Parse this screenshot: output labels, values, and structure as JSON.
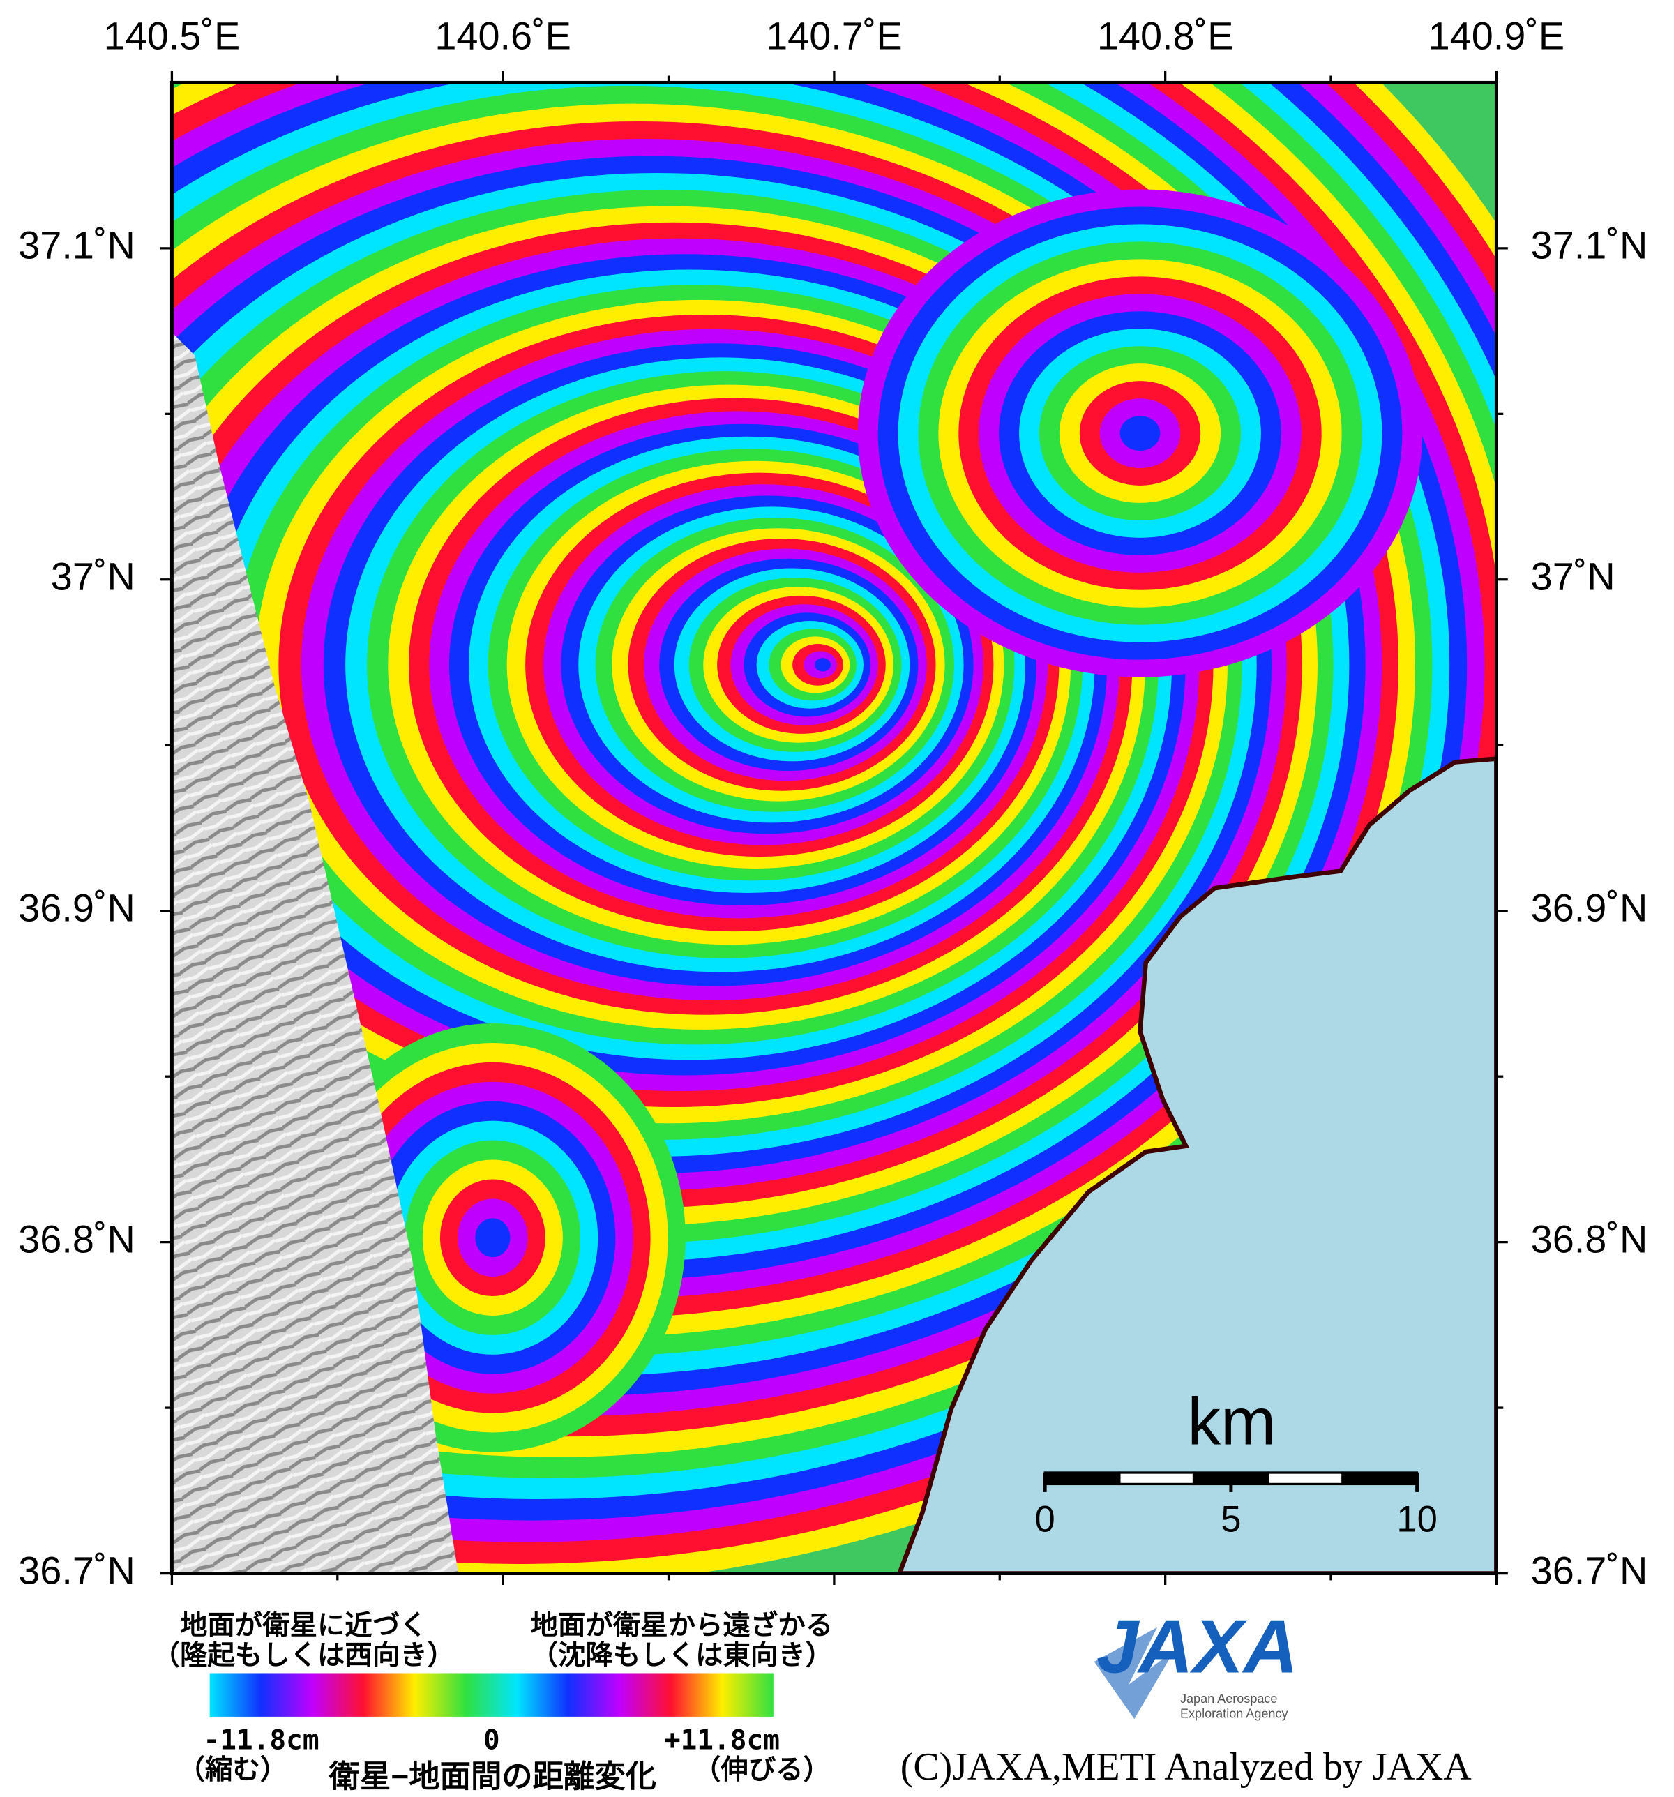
{
  "map": {
    "lon_extent": [
      140.5,
      140.9
    ],
    "lat_extent": [
      36.7,
      37.15
    ],
    "lon_ticks": [
      {
        "value": 140.5,
        "label": "140.5˚E"
      },
      {
        "value": 140.6,
        "label": "140.6˚E"
      },
      {
        "value": 140.7,
        "label": "140.7˚E"
      },
      {
        "value": 140.8,
        "label": "140.8˚E"
      },
      {
        "value": 140.9,
        "label": "140.9˚E"
      }
    ],
    "lat_ticks": [
      {
        "value": 36.7,
        "label": "36.7˚N"
      },
      {
        "value": 36.8,
        "label": "36.8˚N"
      },
      {
        "value": 36.9,
        "label": "36.9˚N"
      },
      {
        "value": 37.0,
        "label": "37˚N"
      },
      {
        "value": 37.1,
        "label": "37.1˚N"
      }
    ],
    "lon_minor_ticks": [
      140.55,
      140.65,
      140.75,
      140.85
    ],
    "lat_minor_ticks": [
      36.75,
      36.85,
      36.95,
      37.05
    ],
    "scale_bar": {
      "unit": "km",
      "ticks": [
        0,
        5,
        10
      ],
      "segment_km": 2
    }
  },
  "legend": {
    "left_title": "地面が衛星に近づく",
    "left_subtitle": "（隆起もしくは西向き）",
    "right_title": "地面が衛星から遠ざかる",
    "right_subtitle": "（沈降もしくは東向き）",
    "range": [
      -11.8,
      11.8
    ],
    "ticks": [
      {
        "value": -11.8,
        "label": "-11.8cm"
      },
      0,
      {
        "value": 11.8,
        "label": "+11.8cm"
      }
    ],
    "left_note": "（縮む）",
    "right_note": "（伸びる）",
    "caption": "衛星−地面間の距離変化",
    "colors": [
      "#00e5ff",
      "#1030ff",
      "#c000ff",
      "#ff1030",
      "#ffee00",
      "#30e040",
      "#00e5ff",
      "#1030ff",
      "#c000ff",
      "#ff1030",
      "#ffee00",
      "#30e040"
    ]
  },
  "logo": {
    "name": "JAXA",
    "line1": "Japan Aerospace",
    "line2": "Exploration Agency"
  },
  "credit": "(C)JAXA,METI Analyzed by JAXA"
}
